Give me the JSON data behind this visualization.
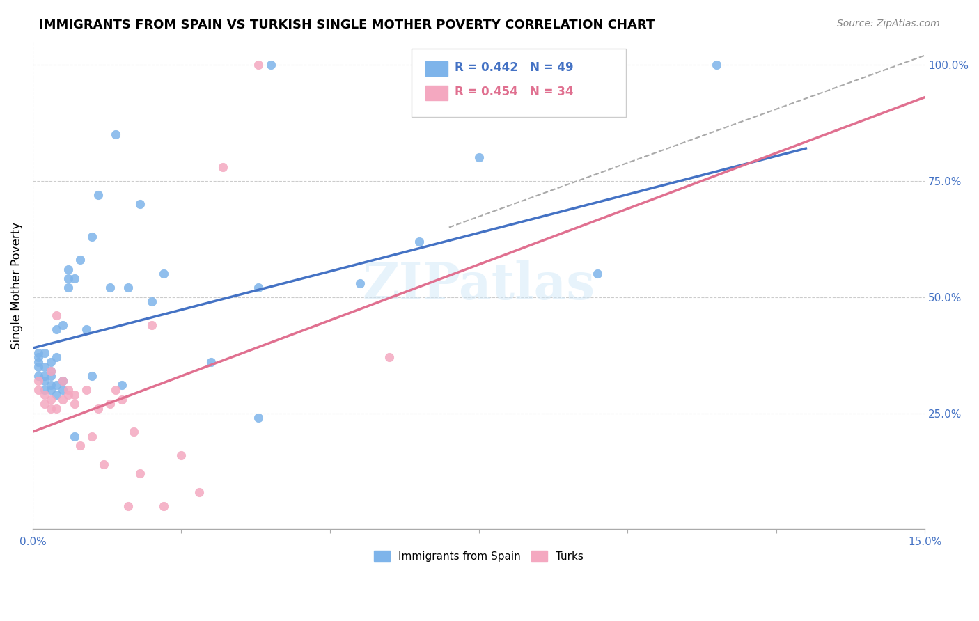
{
  "title": "IMMIGRANTS FROM SPAIN VS TURKISH SINGLE MOTHER POVERTY CORRELATION CHART",
  "source": "Source: ZipAtlas.com",
  "ylabel": "Single Mother Poverty",
  "xlim": [
    0.0,
    0.15
  ],
  "ylim": [
    0.0,
    1.05
  ],
  "xtick_positions": [
    0.0,
    0.025,
    0.05,
    0.075,
    0.1,
    0.125,
    0.15
  ],
  "xtick_labels": [
    "0.0%",
    "",
    "",
    "",
    "",
    "",
    "15.0%"
  ],
  "ytick_labels_right": [
    "25.0%",
    "50.0%",
    "75.0%",
    "100.0%"
  ],
  "ytick_vals_right": [
    0.25,
    0.5,
    0.75,
    1.0
  ],
  "color_blue": "#7EB4EA",
  "color_pink": "#F4A8C0",
  "line_blue": "#4472C4",
  "line_pink": "#E07090",
  "legend_r1": "R = 0.442",
  "legend_n1": "N = 49",
  "legend_r2": "R = 0.454",
  "legend_n2": "N = 34",
  "watermark": "ZIPatlas",
  "blue_x": [
    0.001,
    0.001,
    0.001,
    0.001,
    0.001,
    0.002,
    0.002,
    0.002,
    0.002,
    0.002,
    0.003,
    0.003,
    0.003,
    0.003,
    0.003,
    0.004,
    0.004,
    0.004,
    0.004,
    0.005,
    0.005,
    0.005,
    0.006,
    0.006,
    0.006,
    0.007,
    0.007,
    0.008,
    0.009,
    0.01,
    0.01,
    0.011,
    0.013,
    0.014,
    0.015,
    0.016,
    0.018,
    0.02,
    0.022,
    0.03,
    0.038,
    0.038,
    0.04,
    0.055,
    0.065,
    0.075,
    0.09,
    0.095,
    0.115
  ],
  "blue_y": [
    0.33,
    0.35,
    0.36,
    0.37,
    0.38,
    0.3,
    0.32,
    0.33,
    0.35,
    0.38,
    0.3,
    0.31,
    0.33,
    0.34,
    0.36,
    0.29,
    0.31,
    0.37,
    0.43,
    0.3,
    0.32,
    0.44,
    0.52,
    0.54,
    0.56,
    0.2,
    0.54,
    0.58,
    0.43,
    0.33,
    0.63,
    0.72,
    0.52,
    0.85,
    0.31,
    0.52,
    0.7,
    0.49,
    0.55,
    0.36,
    0.24,
    0.52,
    1.0,
    0.53,
    0.62,
    0.8,
    1.0,
    0.55,
    1.0
  ],
  "pink_x": [
    0.001,
    0.001,
    0.002,
    0.002,
    0.003,
    0.003,
    0.003,
    0.004,
    0.004,
    0.005,
    0.005,
    0.006,
    0.006,
    0.007,
    0.007,
    0.008,
    0.009,
    0.01,
    0.011,
    0.012,
    0.013,
    0.014,
    0.015,
    0.016,
    0.017,
    0.018,
    0.02,
    0.022,
    0.025,
    0.028,
    0.032,
    0.038,
    0.06,
    0.09
  ],
  "pink_y": [
    0.3,
    0.32,
    0.27,
    0.29,
    0.26,
    0.28,
    0.34,
    0.26,
    0.46,
    0.28,
    0.32,
    0.29,
    0.3,
    0.27,
    0.29,
    0.18,
    0.3,
    0.2,
    0.26,
    0.14,
    0.27,
    0.3,
    0.28,
    0.05,
    0.21,
    0.12,
    0.44,
    0.05,
    0.16,
    0.08,
    0.78,
    1.0,
    0.37,
    1.0
  ],
  "blue_line_x": [
    0.0,
    0.13
  ],
  "blue_line_y": [
    0.39,
    0.82
  ],
  "pink_line_x": [
    0.0,
    0.15
  ],
  "pink_line_y": [
    0.21,
    0.93
  ],
  "dashed_line_x": [
    0.07,
    0.15
  ],
  "dashed_line_y": [
    0.65,
    1.02
  ]
}
